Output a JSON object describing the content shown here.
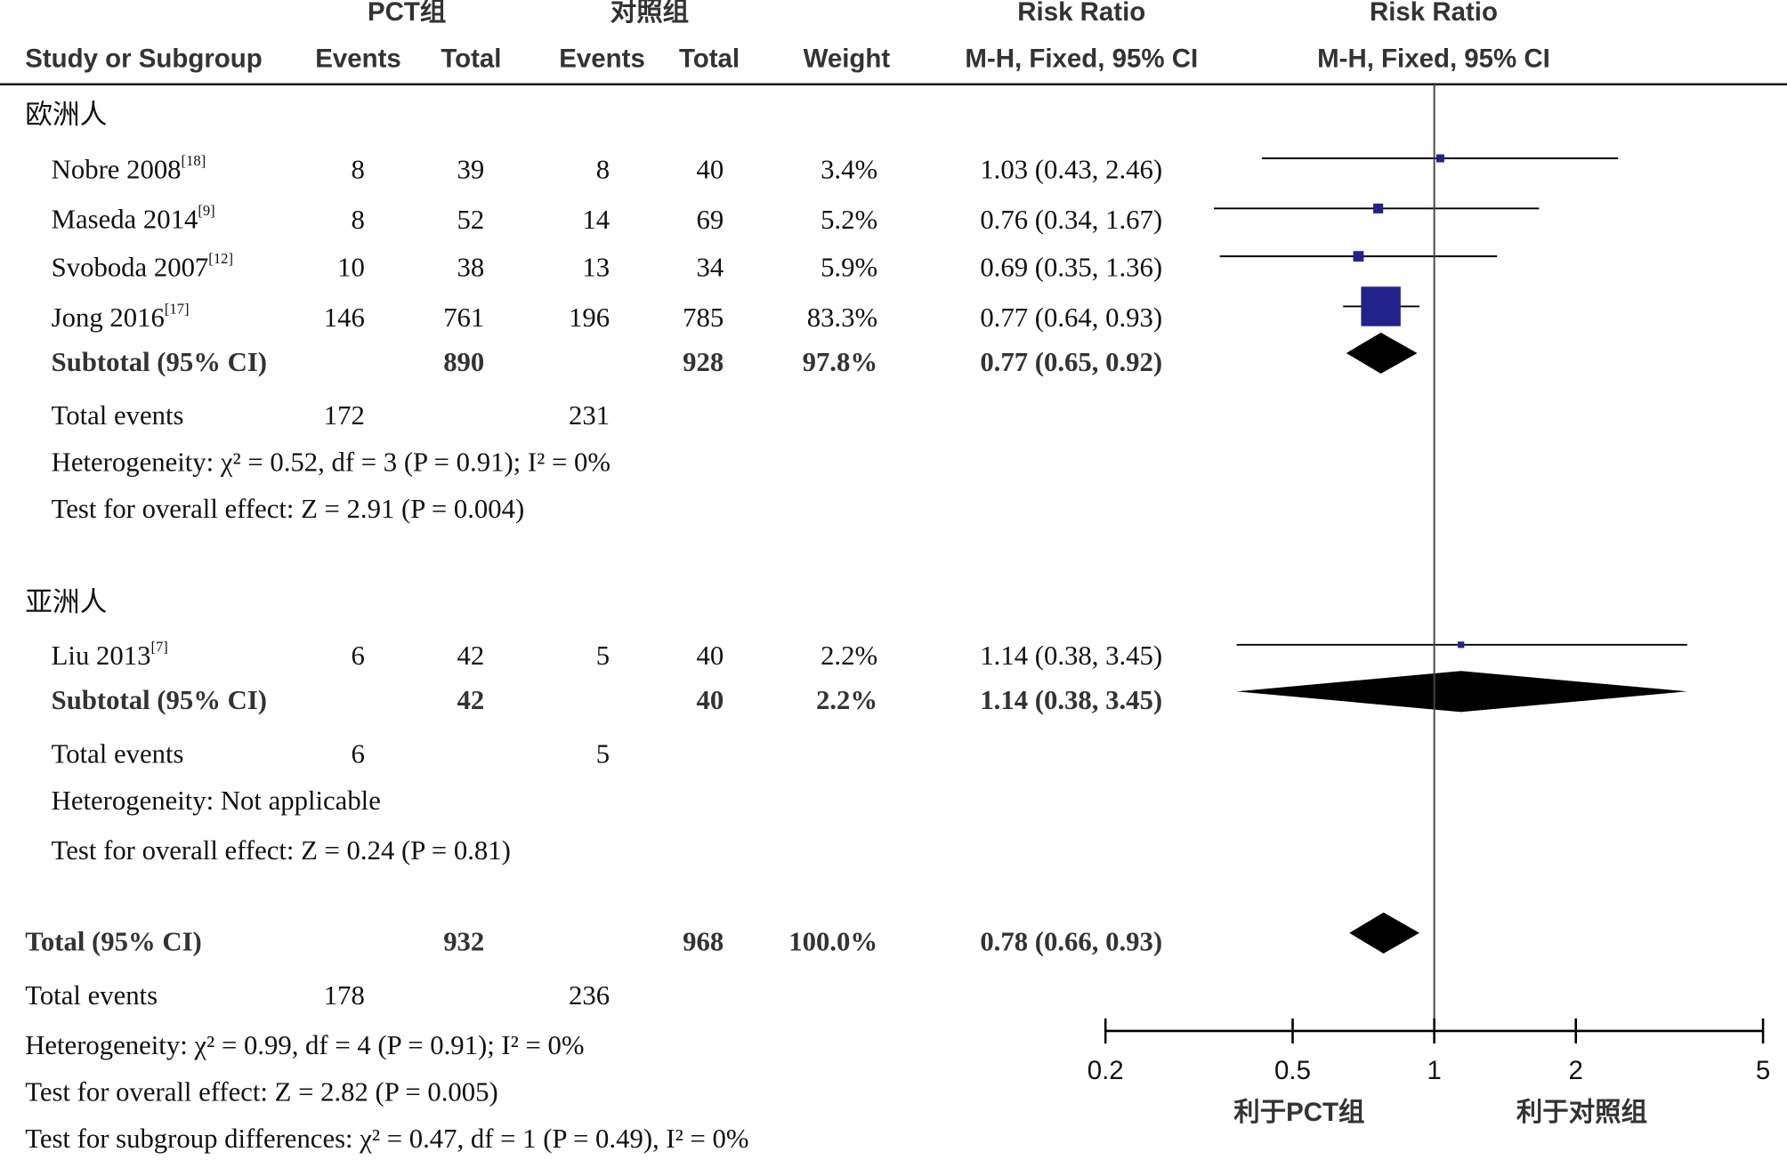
{
  "header": {
    "group1": "PCT组",
    "group2": "对照组",
    "rr1": "Risk Ratio",
    "rr2": "Risk Ratio",
    "col_study": "Study or Subgroup",
    "col_events1": "Events",
    "col_total1": "Total",
    "col_events2": "Events",
    "col_total2": "Total",
    "col_weight": "Weight",
    "col_method1": "M-H, Fixed, 95% CI",
    "col_method2": "M-H, Fixed, 95% CI"
  },
  "subgroups": [
    {
      "name": "欧洲人",
      "studies": [
        {
          "study": "Nobre 2008",
          "ref": "[18]",
          "events1": 8,
          "total1": 39,
          "events2": 8,
          "total2": 40,
          "weight": {
            "value": 3.4,
            "label": "3.4%"
          },
          "ci_label": "1.03 (0.43, 2.46)",
          "rr": 1.03,
          "lo": 0.43,
          "hi": 2.46
        },
        {
          "study": "Maseda 2014",
          "ref": "[9]",
          "events1": 8,
          "total1": 52,
          "events2": 14,
          "total2": 69,
          "weight": {
            "value": 5.2,
            "label": "5.2%"
          },
          "ci_label": "0.76 (0.34, 1.67)",
          "rr": 0.76,
          "lo": 0.34,
          "hi": 1.67
        },
        {
          "study": "Svoboda 2007",
          "ref": "[12]",
          "events1": 10,
          "total1": 38,
          "events2": 13,
          "total2": 34,
          "weight": {
            "value": 5.9,
            "label": "5.9%"
          },
          "ci_label": "0.69 (0.35, 1.36)",
          "rr": 0.69,
          "lo": 0.35,
          "hi": 1.36
        },
        {
          "study": "Jong 2016",
          "ref": "[17]",
          "events1": 146,
          "total1": 761,
          "events2": 196,
          "total2": 785,
          "weight": {
            "value": 83.3,
            "label": "83.3%"
          },
          "ci_label": "0.77 (0.64, 0.93)",
          "rr": 0.77,
          "lo": 0.64,
          "hi": 0.93
        }
      ],
      "subtotal": {
        "study": "Subtotal (95% CI)",
        "total1": 890,
        "total2": 928,
        "weight": {
          "value": 97.8,
          "label": "97.8%"
        },
        "ci_label": "0.77 (0.65, 0.92)",
        "rr": 0.77,
        "lo": 0.65,
        "hi": 0.92
      },
      "total_events": {
        "label": "Total events",
        "events1": 172,
        "events2": 231
      },
      "heterogeneity": "Heterogeneity: χ² = 0.52, df = 3 (P = 0.91); I² = 0%",
      "overall": "Test for overall effect: Z = 2.91 (P = 0.004)"
    },
    {
      "name": "亚洲人",
      "studies": [
        {
          "study": "Liu 2013",
          "ref": "[7]",
          "events1": 6,
          "total1": 42,
          "events2": 5,
          "total2": 40,
          "weight": {
            "value": 2.2,
            "label": "2.2%"
          },
          "ci_label": "1.14 (0.38, 3.45)",
          "rr": 1.14,
          "lo": 0.38,
          "hi": 3.45
        }
      ],
      "subtotal": {
        "study": "Subtotal (95% CI)",
        "total1": 42,
        "total2": 40,
        "weight": {
          "value": 2.2,
          "label": "2.2%"
        },
        "ci_label": "1.14 (0.38, 3.45)",
        "rr": 1.14,
        "lo": 0.38,
        "hi": 3.45
      },
      "total_events": {
        "label": "Total events",
        "events1": 6,
        "events2": 5
      },
      "heterogeneity": "Heterogeneity: Not applicable",
      "overall": "Test for overall effect: Z = 0.24 (P = 0.81)"
    }
  ],
  "total": {
    "study": "Total (95% CI)",
    "total1": 932,
    "total2": 968,
    "weight": {
      "value": 100.0,
      "label": "100.0%"
    },
    "ci_label": "0.78 (0.66, 0.93)",
    "rr": 0.78,
    "lo": 0.66,
    "hi": 0.93
  },
  "total_events": {
    "label": "Total events",
    "events1": 178,
    "events2": 236
  },
  "heterogeneity": "Heterogeneity: χ² = 0.99, df = 4 (P = 0.91); I² = 0%",
  "overall": "Test for overall effect: Z = 2.82 (P = 0.005)",
  "subgroup_diff": "Test for subgroup differences: χ² = 0.47, df = 1 (P = 0.49), I² = 0%",
  "axis": {
    "scale": "log",
    "lim": [
      0.2,
      5
    ],
    "ticks": [
      0.2,
      0.5,
      1,
      2,
      5
    ],
    "ref": 1,
    "favors_left": "利于PCT组",
    "favors_right": "利于对照组",
    "square_color": "#22228a",
    "diamond_color": "#000000"
  }
}
